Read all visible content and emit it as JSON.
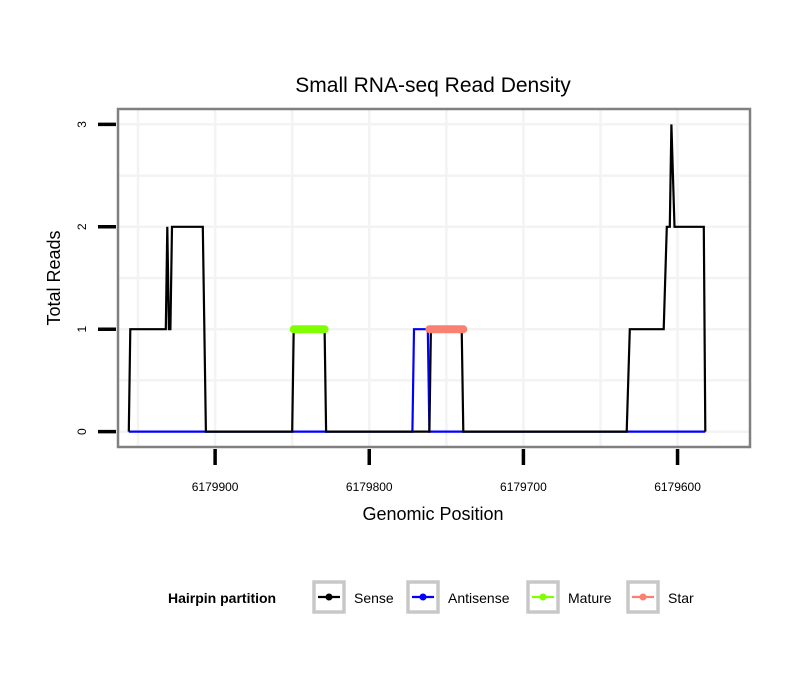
{
  "chart_data": {
    "type": "line",
    "title": "Small RNA-seq Read Density",
    "xlabel": "Genomic Position",
    "ylabel": "Total Reads",
    "x_reversed": true,
    "xlim": [
      6179963,
      6179553
    ],
    "ylim": [
      -0.15,
      3.15
    ],
    "x_ticks": [
      6179900,
      6179800,
      6179700,
      6179600
    ],
    "x_tick_labels": [
      "6179900",
      "6179800",
      "6179700",
      "6179600"
    ],
    "y_ticks": [
      0,
      1,
      2,
      3
    ],
    "y_tick_labels": [
      "0",
      "1",
      "2",
      "3"
    ],
    "grid": true,
    "legend": {
      "title": "Hairpin partition",
      "position": "bottom",
      "entries": [
        {
          "name": "Sense",
          "color": "#000000"
        },
        {
          "name": "Antisense",
          "color": "#0000ff"
        },
        {
          "name": "Mature",
          "color": "#7fff00"
        },
        {
          "name": "Star",
          "color": "#fa8072"
        }
      ]
    },
    "series": [
      {
        "name": "Sense",
        "color": "#000000",
        "x": [
          6179956,
          6179955,
          6179932,
          6179931,
          6179930,
          6179929,
          6179928,
          6179927,
          6179908,
          6179906,
          6179850,
          6179849,
          6179829,
          6179828,
          6179761,
          6179760,
          6179740,
          6179739,
          6179633,
          6179631,
          6179609,
          6179607,
          6179605,
          6179604,
          6179602,
          6179583,
          6179582
        ],
        "y": [
          0,
          1,
          1,
          2,
          1,
          1,
          2,
          2,
          2,
          0,
          0,
          1,
          1,
          0,
          0,
          1,
          1,
          0,
          0,
          1,
          1,
          2,
          2,
          3,
          2,
          2,
          0
        ]
      },
      {
        "name": "Antisense",
        "color": "#0000ff",
        "x": [
          6179956,
          6179772,
          6179771,
          6179762,
          6179761,
          6179739,
          6179582
        ],
        "y": [
          0,
          0,
          1,
          1,
          0,
          0,
          0
        ]
      },
      {
        "name": "Mature",
        "color": "#7fff00",
        "x": [
          6179849,
          6179829
        ],
        "y": [
          1,
          1
        ]
      },
      {
        "name": "Star",
        "color": "#fa8072",
        "x": [
          6179761,
          6179739
        ],
        "y": [
          1,
          1
        ]
      }
    ]
  }
}
